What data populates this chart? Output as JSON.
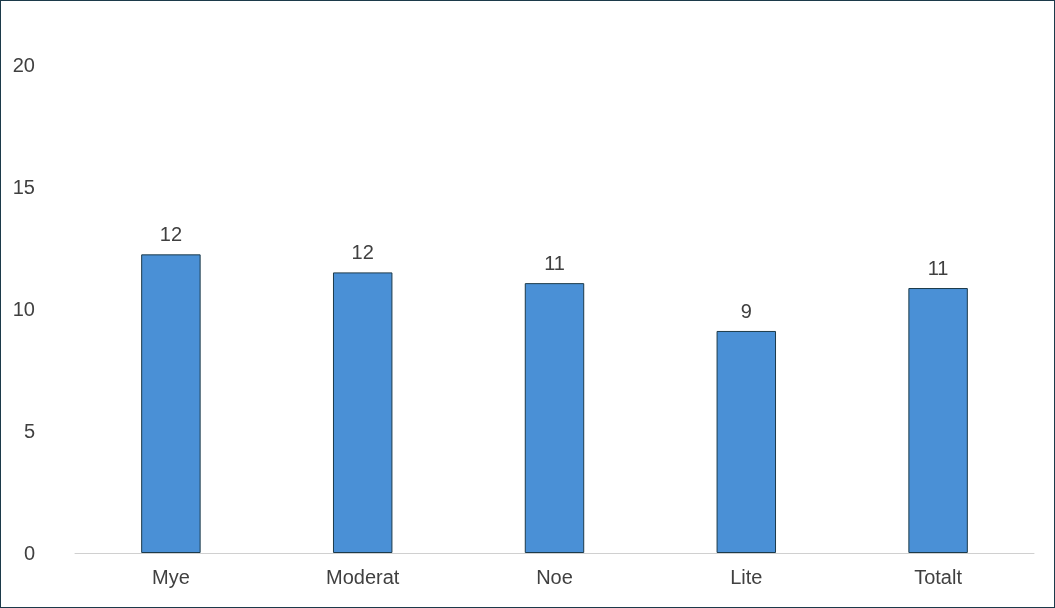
{
  "chart_data": {
    "type": "bar",
    "categories": [
      "Mye",
      "Moderat",
      "Noe",
      "Lite",
      "Totalt"
    ],
    "values": [
      12.24,
      11.5,
      11.06,
      9.1,
      10.86
    ],
    "value_labels": [
      "12",
      "12",
      "11",
      "9",
      "11"
    ],
    "color": "#4a90d6",
    "ylim": [
      0,
      20
    ],
    "yticks": [
      0,
      5,
      10,
      15,
      20
    ],
    "grid": false
  }
}
